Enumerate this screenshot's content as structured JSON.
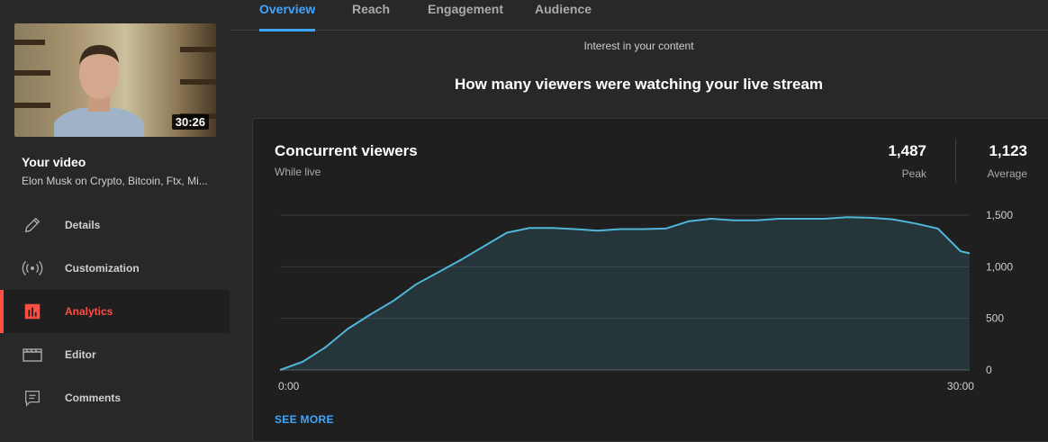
{
  "sidebar": {
    "thumbnail_duration": "30:26",
    "your_video_label": "Your video",
    "video_title": "Elon Musk on Crypto, Bitcoin, Ftx, Mi...",
    "items": [
      {
        "label": "Details",
        "icon": "pencil-icon"
      },
      {
        "label": "Customization",
        "icon": "broadcast-icon"
      },
      {
        "label": "Analytics",
        "icon": "bar-chart-icon",
        "active": true
      },
      {
        "label": "Editor",
        "icon": "clapperboard-icon"
      },
      {
        "label": "Comments",
        "icon": "comment-icon"
      }
    ]
  },
  "tabs": [
    {
      "label": "Overview",
      "active": true
    },
    {
      "label": "Reach"
    },
    {
      "label": "Engagement"
    },
    {
      "label": "Audience"
    }
  ],
  "section": {
    "interest_label": "Interest in your content",
    "headline": "How many viewers were watching your live stream"
  },
  "card": {
    "title": "Concurrent viewers",
    "subtitle": "While live",
    "peak_value": "1,487",
    "peak_label": "Peak",
    "average_value": "1,123",
    "average_label": "Average",
    "see_more": "SEE MORE"
  },
  "colors": {
    "accent_blue": "#3ea6ff",
    "active_red": "#ff4e45",
    "line": "#4fb6d9"
  },
  "chart_data": {
    "type": "area",
    "x_tick_labels": [
      "0:00",
      "30:00"
    ],
    "y_tick_labels": [
      "0",
      "500",
      "1,000",
      "1,500"
    ],
    "ylim": [
      0,
      1500
    ],
    "x_minutes": [
      0,
      1,
      2,
      3,
      4,
      5,
      6,
      7,
      8,
      9,
      10,
      11,
      12,
      13,
      14,
      15,
      16,
      17,
      18,
      19,
      20,
      21,
      22,
      23,
      24,
      25,
      26,
      27,
      28,
      29,
      30,
      30.4
    ],
    "values": [
      0,
      80,
      220,
      400,
      540,
      670,
      830,
      950,
      1070,
      1200,
      1330,
      1375,
      1375,
      1365,
      1350,
      1365,
      1365,
      1370,
      1440,
      1465,
      1450,
      1450,
      1465,
      1465,
      1465,
      1480,
      1475,
      1460,
      1420,
      1370,
      1150,
      1130
    ],
    "grid": true
  }
}
